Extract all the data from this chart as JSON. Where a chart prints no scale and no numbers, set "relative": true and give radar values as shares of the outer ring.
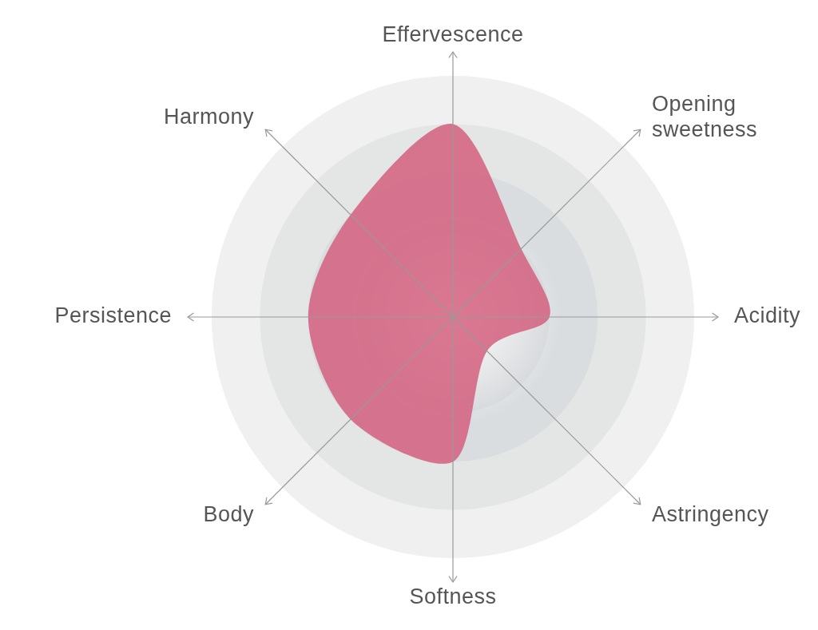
{
  "chart_data": {
    "type": "radar",
    "relative": true,
    "grid": true,
    "categories": [
      "Effervescence",
      "Opening sweetness",
      "Acidity",
      "Astringency",
      "Softness",
      "Body",
      "Persistence",
      "Harmony"
    ],
    "series": [
      {
        "color": "#d4607f",
        "values": [
          0.8,
          0.4,
          0.4,
          0.2,
          0.6,
          0.6,
          0.6,
          0.6
        ]
      }
    ]
  }
}
